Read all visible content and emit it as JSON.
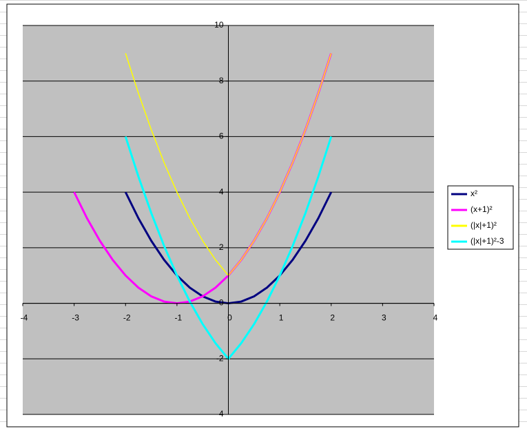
{
  "chart_data": {
    "type": "scatter_line",
    "xlim": [
      -4,
      4
    ],
    "xticks": [
      -4,
      -3,
      -2,
      -1,
      0,
      1,
      2,
      3,
      4
    ],
    "ylim": [
      -4,
      10
    ],
    "yticks": [
      -4,
      -2,
      0,
      2,
      4,
      6,
      8,
      10
    ],
    "grid": true,
    "legend": "right",
    "series": [
      {
        "name": "x²",
        "color": "#000080",
        "x": [
          -2,
          -1.75,
          -1.5,
          -1.25,
          -1,
          -0.75,
          -0.5,
          -0.25,
          0,
          0.25,
          0.5,
          0.75,
          1,
          1.25,
          1.5,
          1.75,
          2
        ],
        "values": [
          4,
          3.0625,
          2.25,
          1.5625,
          1,
          0.5625,
          0.25,
          0.0625,
          0,
          0.0625,
          0.25,
          0.5625,
          1,
          1.5625,
          2.25,
          3.0625,
          4
        ]
      },
      {
        "name": "(x+1)²",
        "color": "#ff00ff",
        "x": [
          -3,
          -2.75,
          -2.5,
          -2.25,
          -2,
          -1.75,
          -1.5,
          -1.25,
          -1,
          -0.75,
          -0.5,
          -0.25,
          0,
          0.25,
          0.5,
          0.75,
          1,
          1.25,
          1.5,
          1.75,
          2
        ],
        "values": [
          4,
          3.0625,
          2.25,
          1.5625,
          1,
          0.5625,
          0.25,
          0.0625,
          0,
          0.0625,
          0.25,
          0.5625,
          1,
          1.5625,
          2.25,
          3.0625,
          4,
          5.0625,
          6.25,
          7.5625,
          9
        ]
      },
      {
        "name": "(|x|+1)²",
        "color": "#ffff00",
        "x": [
          -2,
          -1.75,
          -1.5,
          -1.25,
          -1,
          -0.75,
          -0.5,
          -0.25,
          0,
          0.25,
          0.5,
          0.75,
          1,
          1.25,
          1.5,
          1.75,
          2
        ],
        "values": [
          9,
          7.5625,
          6.25,
          5.0625,
          4,
          3.0625,
          2.25,
          1.5625,
          1,
          1.5625,
          2.25,
          3.0625,
          4,
          5.0625,
          6.25,
          7.5625,
          9
        ]
      },
      {
        "name": "(|x|+1)²-3",
        "color": "#00ffff",
        "x": [
          -2,
          -1.75,
          -1.5,
          -1.25,
          -1,
          -0.75,
          -0.5,
          -0.25,
          0,
          0.25,
          0.5,
          0.75,
          1,
          1.25,
          1.5,
          1.75,
          2
        ],
        "values": [
          6,
          4.5625,
          3.25,
          2.0625,
          1,
          0.0625,
          -0.75,
          -1.4375,
          -2,
          -1.4375,
          -0.75,
          0.0625,
          1,
          2.0625,
          3.25,
          4.5625,
          6
        ]
      }
    ]
  }
}
